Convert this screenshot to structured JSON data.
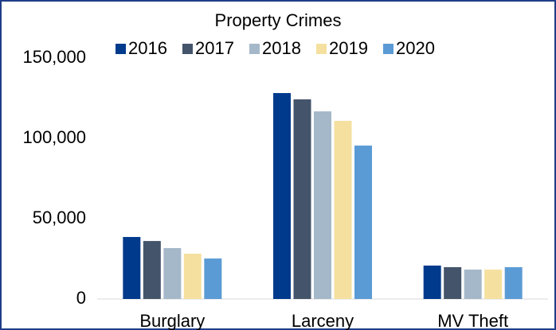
{
  "chart_data": {
    "type": "bar",
    "title": "Property Crimes",
    "categories": [
      "Burglary",
      "Larceny",
      "MV Theft"
    ],
    "series": [
      {
        "name": "2016",
        "color": "#003a8c",
        "values": [
          38600,
          128200,
          20800
        ]
      },
      {
        "name": "2017",
        "color": "#44546a",
        "values": [
          36100,
          124300,
          19800
        ]
      },
      {
        "name": "2018",
        "color": "#a5b8c9",
        "values": [
          31700,
          116800,
          18300
        ]
      },
      {
        "name": "2019",
        "color": "#f5e0a0",
        "values": [
          28200,
          110900,
          18300
        ]
      },
      {
        "name": "2020",
        "color": "#5b9bd5",
        "values": [
          25200,
          95500,
          19800
        ]
      }
    ],
    "ylim": [
      0,
      150000
    ],
    "yticks": [
      0,
      {
        "value": 50000,
        "label": "50,000"
      },
      {
        "value": 100000,
        "label": "100,000"
      },
      {
        "value": 150000,
        "label": "150,000"
      }
    ],
    "grid": false,
    "legend": "top"
  }
}
